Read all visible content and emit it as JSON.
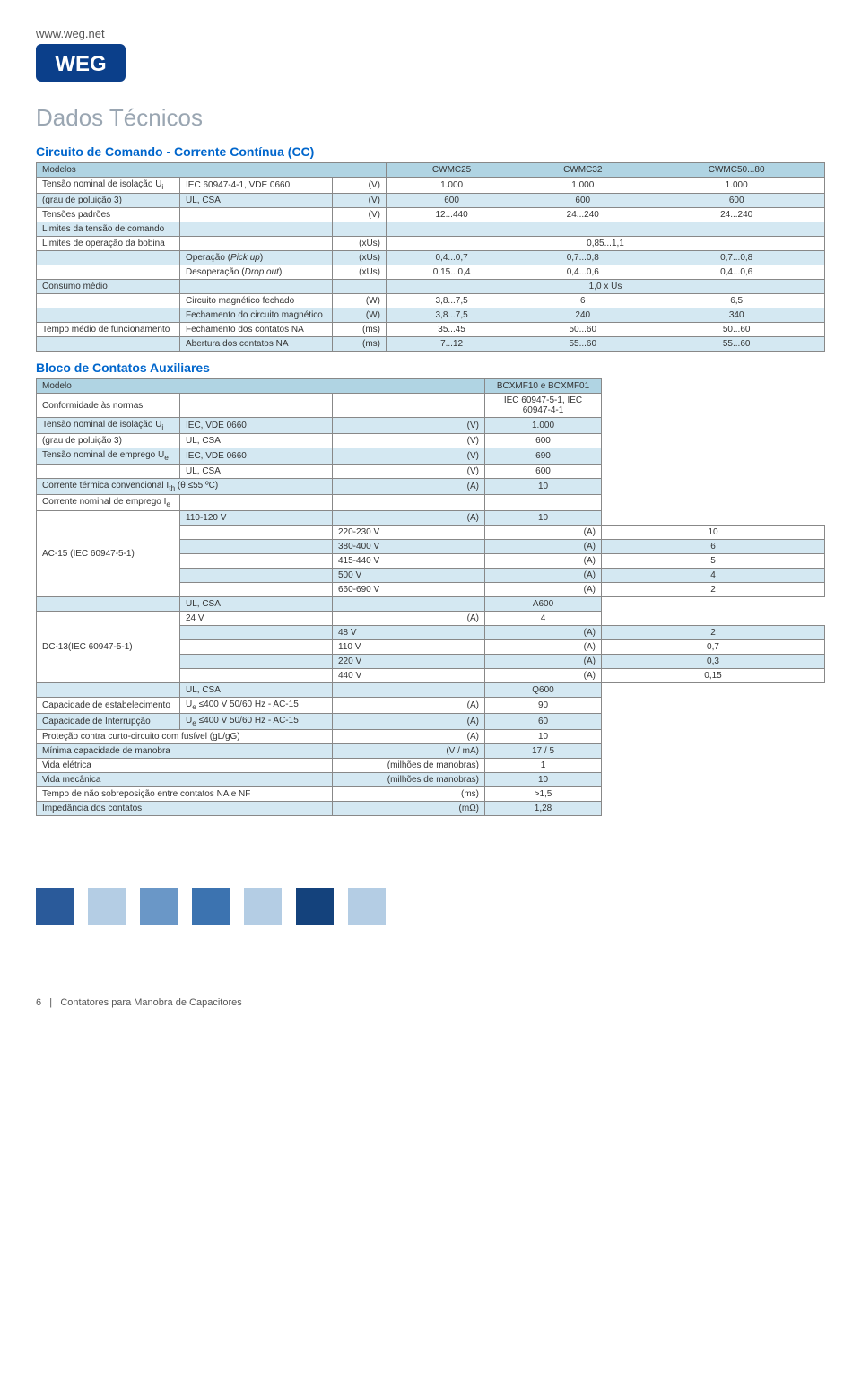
{
  "header": {
    "url": "www.weg.net",
    "logo_color_outer": "#0b3f8a",
    "logo_color_inner": "#ffffff"
  },
  "section_title": "Dados Técnicos",
  "table1": {
    "title": "Circuito de Comando - Corrente Contínua (CC)",
    "header_bg": "#b0d4e3",
    "zebra_bg": "#d4e8f2",
    "cols": [
      "CWMC25",
      "CWMC32",
      "CWMC50...80"
    ],
    "rows": [
      {
        "l1": "Modelos",
        "l2": "",
        "u": "",
        "v": [
          "CWMC25",
          "CWMC32",
          "CWMC50...80"
        ],
        "hdr": true
      },
      {
        "l1": "Tensão nominal de isolação U<sub>i</sub>",
        "l2": "IEC 60947-4-1, VDE 0660",
        "u": "(V)",
        "v": [
          "1.000",
          "1.000",
          "1.000"
        ]
      },
      {
        "l1": "(grau de poluição 3)",
        "l2": "UL, CSA",
        "u": "(V)",
        "v": [
          "600",
          "600",
          "600"
        ],
        "z": true
      },
      {
        "l1": "Tensões padrões",
        "l2": "",
        "u": "(V)",
        "v": [
          "12...440",
          "24...240",
          "24...240"
        ]
      },
      {
        "l1": "Limites da tensão de comando",
        "l2": "",
        "u": "",
        "v": [
          "",
          "",
          ""
        ],
        "z": true
      },
      {
        "l1": "Limites de operação da bobina",
        "l2": "",
        "u": "(xUs)",
        "v": [
          "",
          "0,85...1,1",
          ""
        ],
        "span": true
      },
      {
        "l1": "",
        "l2": "Operação (<i>Pick up</i>)",
        "u": "(xUs)",
        "v": [
          "0,4...0,7",
          "0,7...0,8",
          "0,7...0,8"
        ],
        "z": true
      },
      {
        "l1": "",
        "l2": "Desoperação (<i>Drop out</i>)",
        "u": "(xUs)",
        "v": [
          "0,15...0,4",
          "0,4...0,6",
          "0,4...0,6"
        ]
      },
      {
        "l1": "Consumo médio",
        "l2": "",
        "u": "",
        "v": [
          "",
          "1,0 x Us",
          ""
        ],
        "z": true,
        "span": true
      },
      {
        "l1": "",
        "l2": "Circuito magnético fechado",
        "u": "(W)",
        "v": [
          "3,8...7,5",
          "6",
          "6,5"
        ]
      },
      {
        "l1": "",
        "l2": "Fechamento do circuito magnético",
        "u": "(W)",
        "v": [
          "3,8...7,5",
          "240",
          "340"
        ],
        "z": true
      },
      {
        "l1": "Tempo médio de funcionamento",
        "l2": "Fechamento dos contatos NA",
        "u": "(ms)",
        "v": [
          "35...45",
          "50...60",
          "50...60"
        ]
      },
      {
        "l1": "",
        "l2": "Abertura dos contatos NA",
        "u": "(ms)",
        "v": [
          "7...12",
          "55...60",
          "55...60"
        ],
        "z": true
      }
    ]
  },
  "table2": {
    "title": "Bloco de Contatos Auxiliares",
    "rows": [
      {
        "l1": "Modelo",
        "l2": "",
        "u": "",
        "v": "BCXMF10 e BCXMF01",
        "hdr": true
      },
      {
        "l1": "Conformidade às normas",
        "l2": "",
        "u": "",
        "v": "IEC 60947-5-1, IEC 60947-4-1"
      },
      {
        "l1": "Tensão nominal de isolação U<sub>i</sub>",
        "l2": "IEC, VDE 0660",
        "u": "(V)",
        "v": "1.000",
        "z": true
      },
      {
        "l1": "(grau de poluição 3)",
        "l2": "UL, CSA",
        "u": "(V)",
        "v": "600"
      },
      {
        "l1": "Tensão nominal de emprego U<sub>e</sub>",
        "l2": "IEC, VDE 0660",
        "u": "(V)",
        "v": "690",
        "z": true
      },
      {
        "l1": "",
        "l2": "UL, CSA",
        "u": "(V)",
        "v": "600"
      },
      {
        "l1": "Corrente térmica convencional I<sub>th</sub> (θ ≤55 ºC)",
        "l2": "",
        "u": "(A)",
        "v": "10",
        "z": true,
        "wide": true
      },
      {
        "l1": "Corrente nominal de emprego I<sub>e</sub>",
        "l2": "",
        "u": "",
        "v": ""
      },
      {
        "l1": "",
        "l2": "110-120 V",
        "u": "(A)",
        "v": "10",
        "z": true,
        "group": "AC-15 (IEC 60947-5-1)"
      },
      {
        "l1": "",
        "l2": "220-230 V",
        "u": "(A)",
        "v": "10"
      },
      {
        "l1": "",
        "l2": "380-400 V",
        "u": "(A)",
        "v": "6",
        "z": true
      },
      {
        "l1": "",
        "l2": "415-440 V",
        "u": "(A)",
        "v": "5"
      },
      {
        "l1": "",
        "l2": "500 V",
        "u": "(A)",
        "v": "4",
        "z": true
      },
      {
        "l1": "",
        "l2": "660-690 V",
        "u": "(A)",
        "v": "2"
      },
      {
        "l1": "",
        "l2": "UL, CSA",
        "u": "",
        "v": "A600",
        "z": true
      },
      {
        "l1": "",
        "l2": "24 V",
        "u": "(A)",
        "v": "4",
        "group": "DC-13(IEC 60947-5-1)"
      },
      {
        "l1": "",
        "l2": "48 V",
        "u": "(A)",
        "v": "2",
        "z": true
      },
      {
        "l1": "",
        "l2": "110 V",
        "u": "(A)",
        "v": "0,7"
      },
      {
        "l1": "",
        "l2": "220 V",
        "u": "(A)",
        "v": "0,3",
        "z": true
      },
      {
        "l1": "",
        "l2": "440 V",
        "u": "(A)",
        "v": "0,15"
      },
      {
        "l1": "",
        "l2": "UL, CSA",
        "u": "",
        "v": "Q600",
        "z": true
      },
      {
        "l1": "Capacidade de estabelecimento",
        "l2": "U<sub>e</sub> ≤400 V 50/60 Hz - AC-15",
        "u": "(A)",
        "v": "90"
      },
      {
        "l1": "Capacidade de Interrupção",
        "l2": "U<sub>e</sub> ≤400 V 50/60 Hz - AC-15",
        "u": "(A)",
        "v": "60",
        "z": true
      },
      {
        "l1": "Proteção contra curto-circuito com fusível (gL/gG)",
        "l2": "",
        "u": "(A)",
        "v": "10",
        "wide": true
      },
      {
        "l1": "Mínima capacidade de manobra",
        "l2": "",
        "u": "(V / mA)",
        "v": "17 / 5",
        "z": true,
        "wide": true
      },
      {
        "l1": "Vida elétrica",
        "l2": "",
        "u": "(milhões de manobras)",
        "v": "1",
        "wide": true
      },
      {
        "l1": "Vida mecânica",
        "l2": "",
        "u": "(milhões de manobras)",
        "v": "10",
        "z": true,
        "wide": true
      },
      {
        "l1": "Tempo de não sobreposição entre contatos NA e NF",
        "l2": "",
        "u": "(ms)",
        "v": ">1,5",
        "wide": true
      },
      {
        "l1": "Impedância dos contatos",
        "l2": "",
        "u": "(mΩ)",
        "v": "1,28",
        "z": true,
        "wide": true
      }
    ]
  },
  "footer": {
    "square_colors": [
      "#2a5a9a",
      "#b4cde4",
      "#6a97c7",
      "#3c73b0",
      "#b4cde4",
      "#14427c",
      "#b4cde4"
    ],
    "page_number": "6",
    "doc_title": "Contatores para Manobra de Capacitores"
  }
}
